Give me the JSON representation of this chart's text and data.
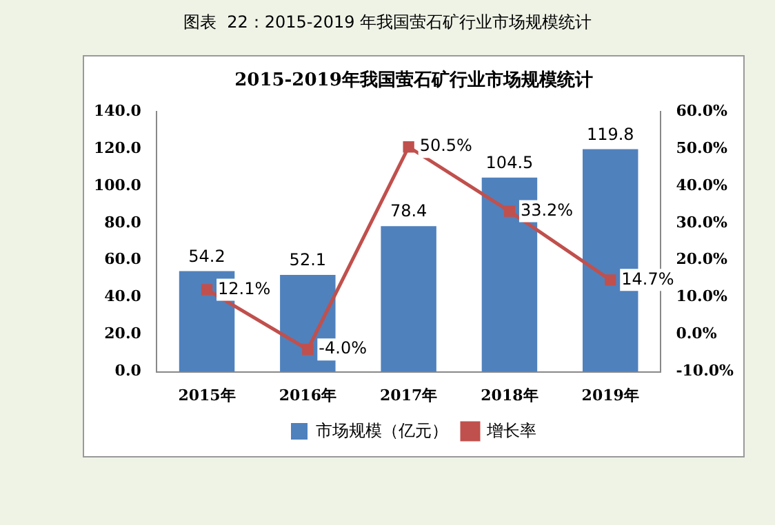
{
  "chart_data": {
    "type": "bar",
    "title": "2015-2019年我国萤石矿行业市场规模统计",
    "annotations": [
      "图表  22：2015-2019 年我国萤石矿行业市场规模统计"
    ],
    "categories": [
      "2015年",
      "2016年",
      "2017年",
      "2018年",
      "2019年"
    ],
    "series": [
      {
        "name": "市场规模（亿元）",
        "color": "#4f81bd",
        "values": [
          54.2,
          52.1,
          78.4,
          104.5,
          119.8
        ],
        "value_labels": [
          "54.2",
          "52.1",
          "78.4",
          "104.5",
          "119.8"
        ]
      },
      {
        "name": "增长率",
        "type": "line",
        "axis": "y2",
        "color": "#c0504d",
        "values": [
          12.1,
          -4.0,
          50.5,
          33.2,
          14.7
        ],
        "value_labels": [
          "12.1%",
          "-4.0%",
          "50.5%",
          "33.2%",
          "14.7%"
        ]
      }
    ],
    "ylim": [
      0,
      140
    ],
    "yticks": [
      {
        "value": 0,
        "label": "0.0"
      },
      {
        "value": 20,
        "label": "20.0"
      },
      {
        "value": 40,
        "label": "40.0"
      },
      {
        "value": 60,
        "label": "60.0"
      },
      {
        "value": 80,
        "label": "80.0"
      },
      {
        "value": 100,
        "label": "100.0"
      },
      {
        "value": 120,
        "label": "120.0"
      },
      {
        "value": 140,
        "label": "140.0"
      }
    ],
    "y2lim": [
      -10,
      60
    ],
    "y2ticks": [
      {
        "value": -10,
        "label": "-10.0%"
      },
      {
        "value": 0,
        "label": "0.0%"
      },
      {
        "value": 10,
        "label": "10.0%"
      },
      {
        "value": 20,
        "label": "20.0%"
      },
      {
        "value": 30,
        "label": "30.0%"
      },
      {
        "value": 40,
        "label": "40.0%"
      },
      {
        "value": 50,
        "label": "50.0%"
      },
      {
        "value": 60,
        "label": "60.0%"
      }
    ],
    "legend": "bottom",
    "marker": "square",
    "line_style": "solid"
  }
}
